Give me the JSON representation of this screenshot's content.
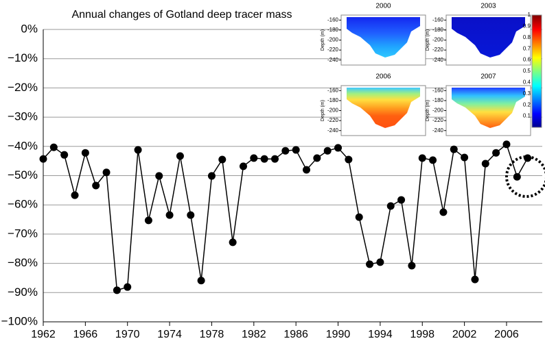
{
  "chart_data": {
    "type": "line",
    "title": "Annual changes of Gotland deep tracer mass",
    "x": [
      1962,
      1963,
      1964,
      1965,
      1966,
      1967,
      1968,
      1969,
      1970,
      1971,
      1972,
      1973,
      1974,
      1975,
      1976,
      1977,
      1978,
      1979,
      1980,
      1981,
      1982,
      1983,
      1984,
      1985,
      1986,
      1987,
      1988,
      1989,
      1990,
      1991,
      1992,
      1993,
      1994,
      1995,
      1996,
      1997,
      1998,
      1999,
      2000,
      2001,
      2002,
      2003,
      2004,
      2005,
      2006,
      2007,
      2008
    ],
    "series": [
      {
        "color": "#000000",
        "values": [
          -44.3,
          -40.3,
          -42.9,
          -56.7,
          -42.2,
          -53.4,
          -48.9,
          -89.2,
          -88.1,
          -41.2,
          -65.3,
          -50.1,
          -63.5,
          -43.3,
          -63.5,
          -85.9,
          -50.1,
          -44.5,
          -72.8,
          -46.8,
          -44.0,
          -44.3,
          -44.3,
          -41.5,
          -41.2,
          -48.0,
          -44.0,
          -41.5,
          -40.5,
          -44.5,
          -64.2,
          -80.3,
          -79.6,
          -60.4,
          -58.3,
          -80.8,
          -44.0,
          -44.7,
          -62.5,
          -41.0,
          -43.8,
          -85.5,
          -45.9,
          -42.2,
          -39.3,
          -50.4,
          -44.0
        ]
      }
    ],
    "xlim": [
      1962,
      2009
    ],
    "xticks": [
      1962,
      1966,
      1970,
      1974,
      1978,
      1982,
      1986,
      1990,
      1994,
      1998,
      2002,
      2006
    ],
    "ylim": [
      -100,
      0
    ],
    "yticks": [
      {
        "value": 0,
        "label": "0%"
      },
      {
        "value": -10,
        "label": "−10%"
      },
      {
        "value": -20,
        "label": "−20%"
      },
      {
        "value": -30,
        "label": "−30%"
      },
      {
        "value": -40,
        "label": "−40%"
      },
      {
        "value": -50,
        "label": "−50%"
      },
      {
        "value": -60,
        "label": "−60%"
      },
      {
        "value": -70,
        "label": "−70%"
      },
      {
        "value": -80,
        "label": "−80%"
      },
      {
        "value": -90,
        "label": "−90%"
      },
      {
        "value": -100,
        "label": "−100%"
      }
    ],
    "grid": true
  },
  "insets": {
    "panels": [
      {
        "title": "2000"
      },
      {
        "title": "2003"
      },
      {
        "title": "2006"
      },
      {
        "title": "2007"
      }
    ],
    "ylabel": "Depth (m)",
    "ylim": [
      -250,
      -150
    ],
    "yticks": [
      -160,
      -180,
      -200,
      -220,
      -240
    ],
    "colorbar": {
      "lim": [
        0,
        1
      ],
      "ticks": [
        0.1,
        0.2,
        0.3,
        0.4,
        0.5,
        0.6,
        0.7,
        0.8,
        0.9,
        1
      ]
    }
  }
}
